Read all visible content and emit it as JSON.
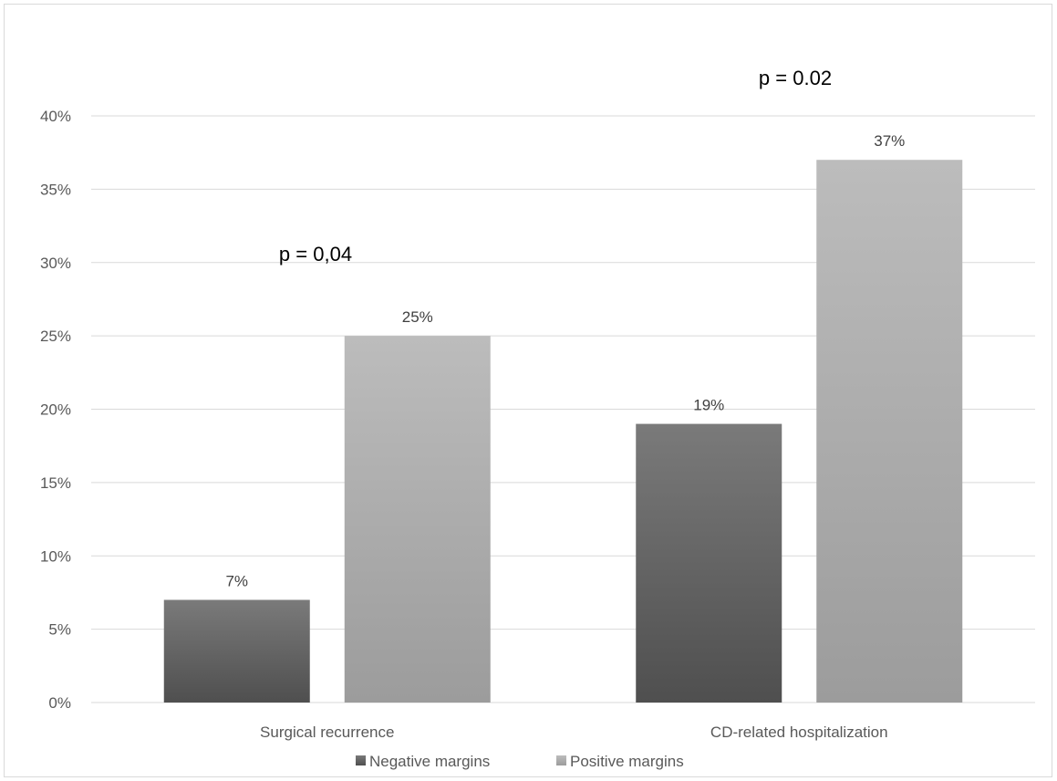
{
  "chart_data": {
    "type": "bar",
    "categories": [
      "Surgical recurrence",
      "CD-related hospitalization"
    ],
    "series": [
      {
        "name": "Negative margins",
        "values": [
          7,
          19
        ],
        "labels": [
          "7%",
          "19%"
        ]
      },
      {
        "name": "Positive margins",
        "values": [
          25,
          37
        ],
        "labels": [
          "25%",
          "37%"
        ]
      }
    ],
    "ylim": [
      0,
      40
    ],
    "y_ticks": [
      0,
      5,
      10,
      15,
      20,
      25,
      30,
      35,
      40
    ],
    "y_tick_labels": [
      "0%",
      "5%",
      "10%",
      "15%",
      "20%",
      "25%",
      "30%",
      "35%",
      "40%"
    ],
    "annotations": [
      "p = 0,04",
      "p = 0.02"
    ],
    "grid": true,
    "legend_position": "bottom"
  },
  "colors": {
    "negative_top": "#7a7a7a",
    "negative_bottom": "#4f4f4f",
    "positive_top": "#bcbcbc",
    "positive_bottom": "#9c9c9c",
    "grid": "#d9d9d9"
  }
}
